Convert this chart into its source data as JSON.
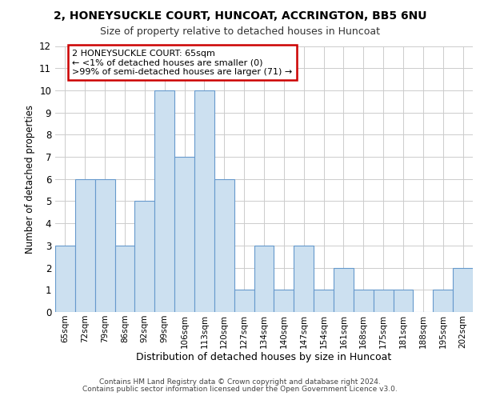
{
  "title1": "2, HONEYSUCKLE COURT, HUNCOAT, ACCRINGTON, BB5 6NU",
  "title2": "Size of property relative to detached houses in Huncoat",
  "xlabel": "Distribution of detached houses by size in Huncoat",
  "ylabel": "Number of detached properties",
  "categories": [
    "65sqm",
    "72sqm",
    "79sqm",
    "86sqm",
    "92sqm",
    "99sqm",
    "106sqm",
    "113sqm",
    "120sqm",
    "127sqm",
    "134sqm",
    "140sqm",
    "147sqm",
    "154sqm",
    "161sqm",
    "168sqm",
    "175sqm",
    "181sqm",
    "188sqm",
    "195sqm",
    "202sqm"
  ],
  "values": [
    3,
    6,
    6,
    3,
    5,
    10,
    7,
    10,
    6,
    1,
    3,
    1,
    3,
    1,
    2,
    1,
    1,
    1,
    0,
    1,
    2
  ],
  "bar_color": "#cce0f0",
  "bar_edge_color": "#6699cc",
  "annotation_text": "2 HONEYSUCKLE COURT: 65sqm\n← <1% of detached houses are smaller (0)\n>99% of semi-detached houses are larger (71) →",
  "annotation_box_facecolor": "#ffffff",
  "annotation_box_edgecolor": "#cc0000",
  "ylim": [
    0,
    12
  ],
  "yticks": [
    0,
    1,
    2,
    3,
    4,
    5,
    6,
    7,
    8,
    9,
    10,
    11,
    12
  ],
  "footer1": "Contains HM Land Registry data © Crown copyright and database right 2024.",
  "footer2": "Contains public sector information licensed under the Open Government Licence v3.0.",
  "background_color": "#ffffff",
  "plot_background": "#ffffff",
  "grid_color": "#cccccc"
}
